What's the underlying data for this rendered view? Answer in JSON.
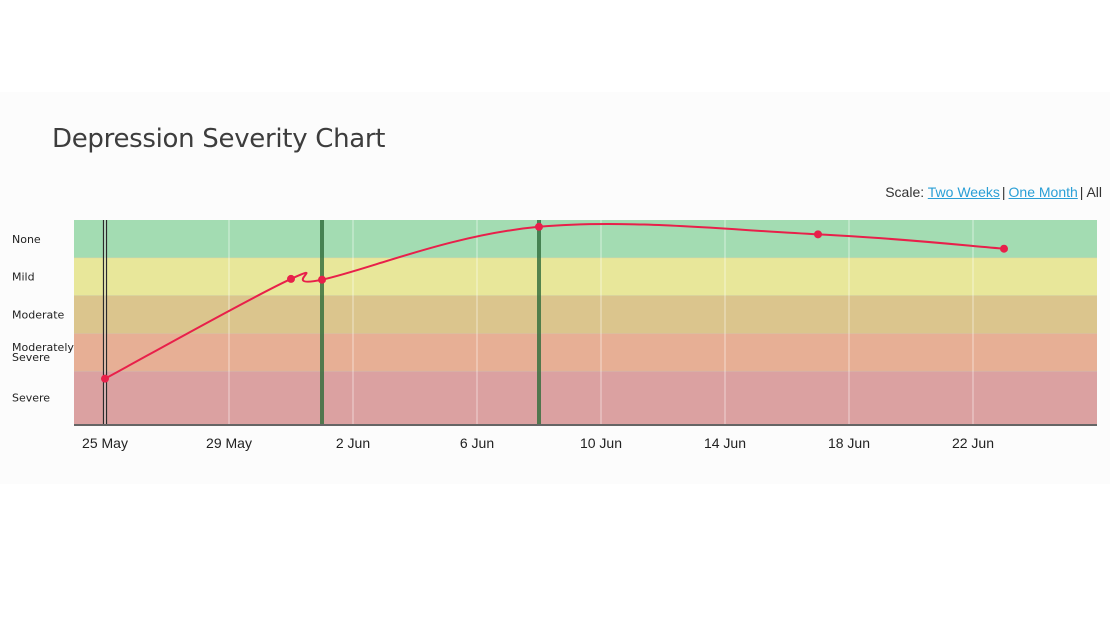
{
  "page": {
    "title": "Depression Severity Chart",
    "scale": {
      "label": "Scale:",
      "options": [
        "Two Weeks",
        "One Month",
        "All"
      ],
      "selected": "All",
      "separator": "|"
    }
  },
  "chart_data": {
    "type": "line",
    "title": "Depression Severity Chart",
    "x_axis": {
      "type": "date",
      "range": [
        "2020-05-24",
        "2020-06-26"
      ],
      "tick_labels": [
        "25 May",
        "29 May",
        "2 Jun",
        "6 Jun",
        "10 Jun",
        "14 Jun",
        "18 Jun",
        "22 Jun"
      ],
      "ticks": [
        "2020-05-25",
        "2020-05-29",
        "2020-06-02",
        "2020-06-06",
        "2020-06-10",
        "2020-06-14",
        "2020-06-18",
        "2020-06-22"
      ]
    },
    "y_axis": {
      "type": "category",
      "bands": [
        {
          "label": "None",
          "color": "#a3dcb2"
        },
        {
          "label": "Mild",
          "color": "#e8e79a"
        },
        {
          "label": "Moderate",
          "color": "#dbc58d"
        },
        {
          "label": [
            "Moderately",
            "Severe"
          ],
          "color": "#e7af95"
        },
        {
          "label": "Severe",
          "color": "#dba1a1"
        }
      ],
      "scale": [
        0,
        27
      ],
      "band_edges": [
        27,
        22,
        17,
        12,
        7,
        0
      ]
    },
    "series": [
      {
        "color": "#e8204a",
        "points": [
          {
            "x": "2020-05-25",
            "y": 6
          },
          {
            "x": "2020-05-31",
            "y": 19.2
          },
          {
            "x": "2020-06-01",
            "y": 19.1
          },
          {
            "x": "2020-06-08",
            "y": 26.1
          },
          {
            "x": "2020-06-17",
            "y": 25.1
          },
          {
            "x": "2020-06-23",
            "y": 23.2
          }
        ]
      }
    ],
    "markers": [
      {
        "x": "2020-05-25",
        "color": "#2b2b2b"
      },
      {
        "x": "2020-06-01",
        "color": "#2e6b3a"
      },
      {
        "x": "2020-06-08",
        "color": "#2e6b3a"
      }
    ],
    "grid": {
      "vertical": true,
      "horizontal": false
    }
  }
}
